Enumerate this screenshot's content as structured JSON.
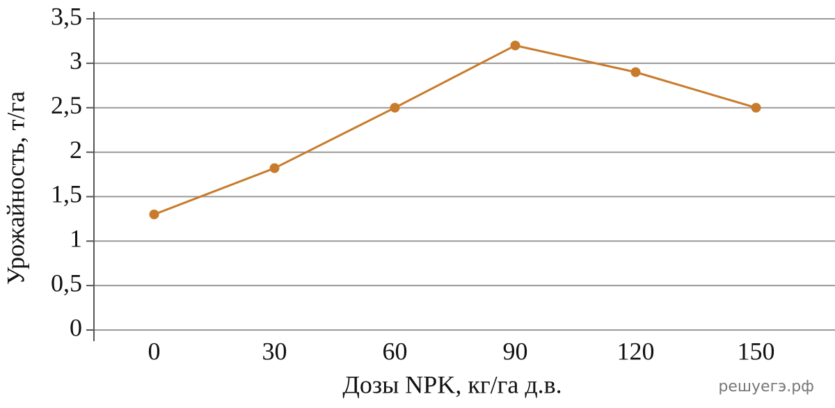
{
  "chart_data": {
    "type": "line",
    "x_label": "Дозы NPK, кг/га д.в.",
    "y_label": "Урожайность, т/га",
    "watermark": "решуегэ.рф",
    "categories": [
      "0",
      "30",
      "60",
      "90",
      "120",
      "150"
    ],
    "series": [
      {
        "name": "Урожайность",
        "color": "#c87b2b",
        "values": [
          1.3,
          1.82,
          2.5,
          3.2,
          2.9,
          2.5
        ]
      }
    ],
    "ylim": [
      0,
      3.5
    ],
    "yticks": [
      0,
      {
        "value": 0.5,
        "label": "0,5"
      },
      1,
      {
        "value": 1.5,
        "label": "1,5"
      },
      2,
      {
        "value": 2.5,
        "label": "2,5"
      },
      3,
      {
        "value": 3.5,
        "label": "3,5"
      }
    ],
    "grid": true
  }
}
